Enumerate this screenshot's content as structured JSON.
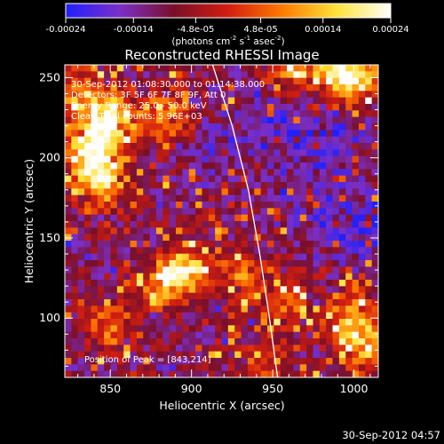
{
  "colorbar": {
    "ticks": [
      "-0.00024",
      "-0.00014",
      "-4.8e-05",
      "4.8e-05",
      "0.00014",
      "0.00024"
    ],
    "tick_values": [
      -0.00024,
      -0.00014,
      -4.8e-05,
      4.8e-05,
      0.00014,
      0.00024
    ],
    "range": [
      -0.00024,
      0.00024
    ],
    "units_main": "(photons cm",
    "units_exp1": "-2",
    "units_mid": " s",
    "units_exp2": "-1",
    "units_end": " asec",
    "units_exp3": "-2",
    "units_close": ")",
    "stops": [
      "#2020ff",
      "#7b2fc7",
      "#7a0f2a",
      "#d21e10",
      "#ff7a00",
      "#ffe23a",
      "#ffffff"
    ]
  },
  "chart_data": {
    "type": "heatmap",
    "title": "Reconstructed RHESSI Image",
    "xlabel": "Heliocentric X (arcsec)",
    "ylabel": "Heliocentric Y (arcsec)",
    "xlim": [
      822,
      1015
    ],
    "ylim": [
      63,
      258
    ],
    "x_ticks": [
      850,
      900,
      950,
      1000
    ],
    "y_ticks": [
      100,
      150,
      200,
      250
    ],
    "grid": false,
    "info": {
      "time": "30-Sep-2012 01:08:30.000 to 01:14:38.000",
      "detectors": "Detectors: 3F 5F 6F 7F 8F 9F, Att 0",
      "energy": "Energy Range: 25.0 - 50.0 keV",
      "clean": "Clean     Total counts: 5.96E+03",
      "peak": "Position of Peak = [843,214]"
    },
    "peak_position": [
      843,
      214
    ],
    "limb_curve": [
      [
        913,
        258
      ],
      [
        925,
        220
      ],
      [
        935,
        180
      ],
      [
        942,
        140
      ],
      [
        948,
        100
      ],
      [
        953,
        63
      ]
    ],
    "hot_regions": [
      {
        "x": 838,
        "y": 205,
        "level": 1.0
      },
      {
        "x": 850,
        "y": 225,
        "level": 0.9
      },
      {
        "x": 845,
        "y": 185,
        "level": 0.85
      },
      {
        "x": 830,
        "y": 240,
        "level": 0.6
      },
      {
        "x": 897,
        "y": 130,
        "level": 0.85
      },
      {
        "x": 880,
        "y": 120,
        "level": 0.5
      },
      {
        "x": 885,
        "y": 225,
        "level": 0.65
      },
      {
        "x": 1000,
        "y": 100,
        "level": 0.75
      },
      {
        "x": 1008,
        "y": 80,
        "level": 0.6
      },
      {
        "x": 990,
        "y": 255,
        "level": 0.75
      },
      {
        "x": 960,
        "y": 255,
        "level": 0.55
      },
      {
        "x": 850,
        "y": 95,
        "level": 0.55
      },
      {
        "x": 930,
        "y": 125,
        "level": 0.5
      },
      {
        "x": 960,
        "y": 110,
        "level": 0.45
      },
      {
        "x": 945,
        "y": 70,
        "level": 0.45
      },
      {
        "x": 1002,
        "y": 250,
        "level": 0.7
      }
    ],
    "cool_regions": [
      {
        "x": 985,
        "y": 215,
        "level": 0.8
      },
      {
        "x": 1008,
        "y": 155,
        "level": 0.7
      },
      {
        "x": 950,
        "y": 225,
        "level": 0.55
      },
      {
        "x": 915,
        "y": 205,
        "level": 0.4
      },
      {
        "x": 975,
        "y": 175,
        "level": 0.45
      }
    ]
  },
  "footer": {
    "timestamp": "30-Sep-2012 04:57"
  }
}
